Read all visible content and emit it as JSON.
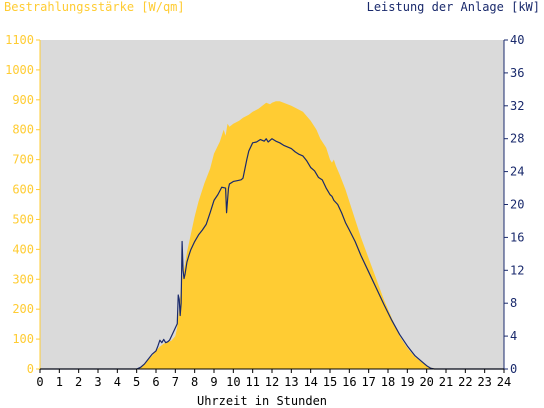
{
  "chart_data": {
    "type": "area",
    "left_axis_title": "Bestrahlungsstärke [W/qm]",
    "right_axis_title": "Leistung der Anlage [kW]",
    "xlabel": "Uhrzeit in Stunden",
    "xlim": [
      0,
      24
    ],
    "x_ticks": [
      0,
      1,
      2,
      3,
      4,
      5,
      6,
      7,
      8,
      9,
      10,
      11,
      12,
      13,
      14,
      15,
      16,
      17,
      18,
      19,
      20,
      21,
      22,
      23,
      24
    ],
    "left_ylim": [
      0,
      1100
    ],
    "left_ticks": [
      0,
      100,
      200,
      300,
      400,
      500,
      600,
      700,
      800,
      900,
      1000,
      1100
    ],
    "right_ylim": [
      0,
      40
    ],
    "right_ticks": [
      0,
      4,
      8,
      12,
      16,
      20,
      24,
      28,
      32,
      36,
      40
    ],
    "grid": false,
    "colors": {
      "plot_background": "#dadada",
      "irradiance_fill": "#ffcc33",
      "power_line": "#1a2a6c",
      "left_axis_text": "#ffcc33",
      "right_axis_text": "#1a2a6c",
      "axis_black": "#000000"
    },
    "series": [
      {
        "axis": "left",
        "unit": "W/qm",
        "x": [
          0,
          5.0,
          5.2,
          5.4,
          5.6,
          5.8,
          6.0,
          6.2,
          6.4,
          6.6,
          6.8,
          7.0,
          7.1,
          7.2,
          7.3,
          7.4,
          7.5,
          7.6,
          7.7,
          7.8,
          8.0,
          8.2,
          8.5,
          8.8,
          9.0,
          9.3,
          9.5,
          9.6,
          9.7,
          9.8,
          10.0,
          10.3,
          10.5,
          10.8,
          11.0,
          11.3,
          11.5,
          11.7,
          11.9,
          12.0,
          12.2,
          12.4,
          12.6,
          12.8,
          13.0,
          13.3,
          13.6,
          13.8,
          14.0,
          14.3,
          14.5,
          14.8,
          15.0,
          15.1,
          15.2,
          15.3,
          15.5,
          15.8,
          16.0,
          16.3,
          16.6,
          17.0,
          17.4,
          17.8,
          18.2,
          18.6,
          19.0,
          19.4,
          19.8,
          20.0,
          20.2,
          20.4,
          20.6,
          20.8,
          21.0,
          24.0
        ],
        "values": [
          0,
          0,
          5,
          15,
          30,
          45,
          60,
          75,
          85,
          90,
          95,
          110,
          140,
          200,
          280,
          320,
          350,
          390,
          420,
          450,
          510,
          560,
          620,
          670,
          720,
          760,
          800,
          780,
          820,
          810,
          820,
          830,
          840,
          850,
          860,
          870,
          880,
          890,
          885,
          890,
          895,
          895,
          890,
          885,
          880,
          870,
          860,
          845,
          830,
          800,
          770,
          740,
          700,
          690,
          700,
          680,
          650,
          600,
          560,
          500,
          440,
          370,
          300,
          230,
          170,
          110,
          70,
          40,
          20,
          10,
          5,
          2,
          0,
          0,
          0,
          0
        ]
      },
      {
        "axis": "right",
        "unit": "kW",
        "x": [
          0,
          5.0,
          5.2,
          5.4,
          5.6,
          5.8,
          6.0,
          6.1,
          6.2,
          6.3,
          6.4,
          6.5,
          6.6,
          6.7,
          6.8,
          6.9,
          7.0,
          7.1,
          7.15,
          7.2,
          7.25,
          7.3,
          7.35,
          7.4,
          7.45,
          7.5,
          7.6,
          7.7,
          7.8,
          8.0,
          8.2,
          8.4,
          8.6,
          8.8,
          9.0,
          9.2,
          9.4,
          9.6,
          9.65,
          9.7,
          9.75,
          9.8,
          10.0,
          10.2,
          10.4,
          10.5,
          10.7,
          10.8,
          11.0,
          11.2,
          11.4,
          11.6,
          11.7,
          11.8,
          12.0,
          12.2,
          12.4,
          12.6,
          12.8,
          13.0,
          13.2,
          13.4,
          13.6,
          13.8,
          14.0,
          14.2,
          14.4,
          14.6,
          14.8,
          14.9,
          15.0,
          15.1,
          15.2,
          15.4,
          15.6,
          15.8,
          16.0,
          16.3,
          16.6,
          17.0,
          17.4,
          17.8,
          18.2,
          18.6,
          19.0,
          19.4,
          19.8,
          20.0,
          20.2,
          20.4,
          20.6,
          21.0,
          24.0
        ],
        "values": [
          0,
          0,
          0.2,
          0.6,
          1.2,
          1.8,
          2.2,
          2.8,
          3.5,
          3.2,
          3.6,
          3.2,
          3.3,
          3.5,
          4.0,
          4.5,
          5.0,
          5.5,
          9.0,
          8.5,
          6.5,
          8.0,
          15.5,
          12.0,
          11.0,
          11.5,
          13.0,
          13.8,
          14.5,
          15.5,
          16.3,
          16.9,
          17.6,
          19.0,
          20.5,
          21.2,
          22.1,
          22.0,
          19.0,
          20.5,
          22.0,
          22.5,
          22.8,
          22.9,
          23.0,
          23.2,
          25.5,
          26.5,
          27.5,
          27.6,
          27.9,
          27.7,
          28.0,
          27.6,
          28.0,
          27.7,
          27.5,
          27.2,
          27.0,
          26.8,
          26.4,
          26.1,
          25.9,
          25.3,
          24.5,
          24.1,
          23.3,
          23.0,
          22.0,
          21.6,
          21.2,
          21.0,
          20.5,
          20.0,
          19.0,
          17.8,
          16.9,
          15.5,
          13.8,
          11.8,
          9.8,
          7.8,
          5.9,
          4.2,
          2.8,
          1.6,
          0.8,
          0.4,
          0.1,
          0,
          0,
          0,
          0
        ]
      }
    ]
  }
}
